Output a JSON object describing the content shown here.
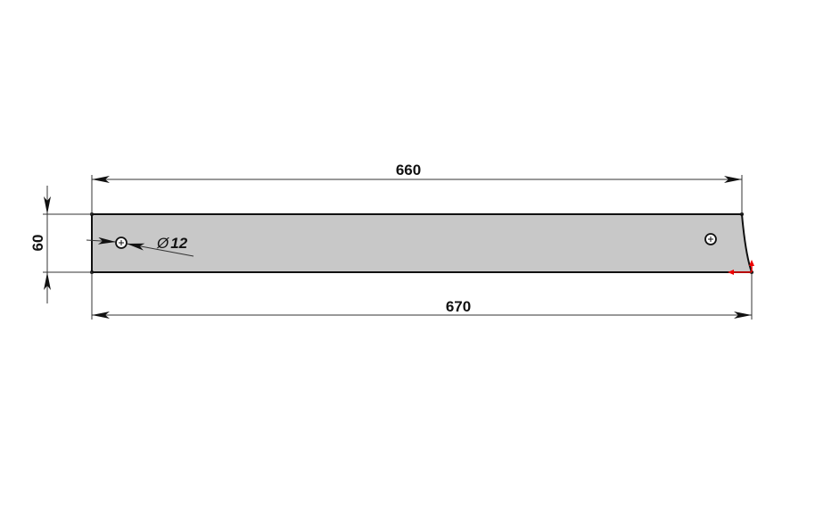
{
  "drawing": {
    "dimensions": {
      "top_length": "660",
      "bottom_length": "670",
      "height": "60",
      "hole_diameter": "12",
      "diameter_symbol": "Ø"
    },
    "colors": {
      "part_fill": "#c8c8c8",
      "outline": "#111111",
      "dimension_line": "#333333",
      "origin_axis": "#ff0000"
    }
  }
}
